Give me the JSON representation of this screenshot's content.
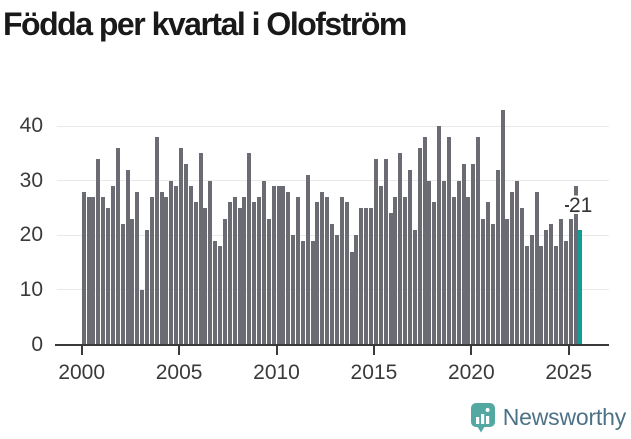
{
  "title": "Födda per kvartal i Olofström",
  "annotation": {
    "label": "21"
  },
  "logo": {
    "text": "Newsworthy"
  },
  "colors": {
    "bar": "#6b6b73",
    "accent": "#0f9e96",
    "axis": "#3a3a3c",
    "grid": "#e9e9e9",
    "tick_text": "#3a3a3c",
    "title_text": "#191919",
    "logo_text": "#4d7287",
    "logo_icon": "#53a9a2"
  },
  "chart_data": {
    "type": "bar",
    "title": "Födda per kvartal i Olofström",
    "xlabel": "",
    "ylabel": "",
    "x_start": {
      "year": 2000,
      "quarter": 1
    },
    "x_end": {
      "year": 2025,
      "quarter": 3
    },
    "x_tick_labels": [
      "2000",
      "2005",
      "2010",
      "2015",
      "2020",
      "2025"
    ],
    "y_ticks": [
      0,
      10,
      20,
      30,
      40
    ],
    "ylim": [
      0,
      44
    ],
    "grid": "horizontal",
    "legend": "none",
    "highlight_last_bar": true,
    "last_value_label": "21",
    "series": [
      {
        "year": 2000,
        "values": [
          28,
          27,
          27,
          34
        ]
      },
      {
        "year": 2001,
        "values": [
          27,
          25,
          29,
          36
        ]
      },
      {
        "year": 2002,
        "values": [
          22,
          32,
          23,
          28
        ]
      },
      {
        "year": 2003,
        "values": [
          10,
          21,
          27,
          38
        ]
      },
      {
        "year": 2004,
        "values": [
          28,
          27,
          30,
          29
        ]
      },
      {
        "year": 2005,
        "values": [
          36,
          33,
          29,
          26
        ]
      },
      {
        "year": 2006,
        "values": [
          35,
          25,
          30,
          19
        ]
      },
      {
        "year": 2007,
        "values": [
          18,
          23,
          26,
          27
        ]
      },
      {
        "year": 2008,
        "values": [
          25,
          27,
          35,
          26
        ]
      },
      {
        "year": 2009,
        "values": [
          27,
          30,
          23,
          29
        ]
      },
      {
        "year": 2010,
        "values": [
          29,
          29,
          28,
          20
        ]
      },
      {
        "year": 2011,
        "values": [
          27,
          19,
          31,
          19
        ]
      },
      {
        "year": 2012,
        "values": [
          26,
          28,
          27,
          22
        ]
      },
      {
        "year": 2013,
        "values": [
          20,
          27,
          26,
          17
        ]
      },
      {
        "year": 2014,
        "values": [
          20,
          25,
          25,
          25
        ]
      },
      {
        "year": 2015,
        "values": [
          34,
          29,
          34,
          24
        ]
      },
      {
        "year": 2016,
        "values": [
          27,
          35,
          27,
          32
        ]
      },
      {
        "year": 2017,
        "values": [
          21,
          36,
          38,
          30
        ]
      },
      {
        "year": 2018,
        "values": [
          26,
          40,
          30,
          38
        ]
      },
      {
        "year": 2019,
        "values": [
          27,
          30,
          33,
          27
        ]
      },
      {
        "year": 2020,
        "values": [
          33,
          38,
          23,
          26
        ]
      },
      {
        "year": 2021,
        "values": [
          22,
          32,
          43,
          23
        ]
      },
      {
        "year": 2022,
        "values": [
          28,
          30,
          25,
          18
        ]
      },
      {
        "year": 2023,
        "values": [
          20,
          28,
          18,
          21
        ]
      },
      {
        "year": 2024,
        "values": [
          22,
          18,
          23,
          19
        ]
      },
      {
        "year": 2025,
        "values": [
          23,
          29,
          21
        ]
      }
    ]
  }
}
